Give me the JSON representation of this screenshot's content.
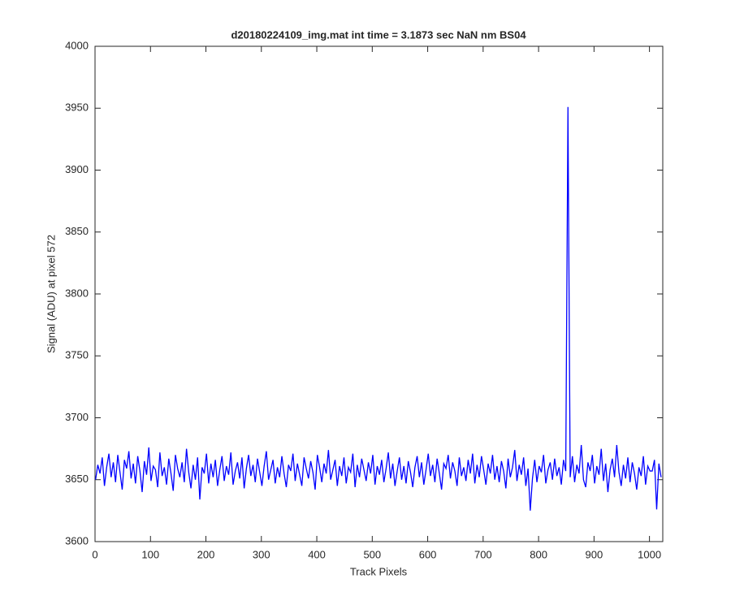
{
  "chart_data": {
    "type": "line",
    "title": "d20180224109_img.mat int time = 3.1873 sec  NaN nm BS04",
    "x_label": "Track Pixels",
    "y_label": "Signal (ADU) at pixel 572",
    "xlim": [
      0,
      1024
    ],
    "ylim": [
      3600,
      4000
    ],
    "xticks": [
      0,
      100,
      200,
      300,
      400,
      500,
      600,
      700,
      800,
      900,
      1000
    ],
    "yticks": [
      3600,
      3650,
      3700,
      3750,
      3800,
      3850,
      3900,
      3950,
      4000
    ],
    "grid": false,
    "series": [
      {
        "color": "#0000ff",
        "x": [
          1,
          5,
          9,
          13,
          17,
          21,
          25,
          29,
          33,
          37,
          41,
          45,
          49,
          53,
          57,
          61,
          65,
          69,
          73,
          77,
          81,
          85,
          89,
          93,
          97,
          101,
          105,
          109,
          113,
          117,
          121,
          125,
          129,
          133,
          137,
          141,
          145,
          149,
          153,
          157,
          161,
          165,
          169,
          173,
          177,
          181,
          185,
          189,
          193,
          197,
          201,
          205,
          209,
          213,
          217,
          221,
          225,
          229,
          233,
          237,
          241,
          245,
          249,
          253,
          257,
          261,
          265,
          269,
          273,
          277,
          281,
          285,
          289,
          293,
          297,
          301,
          305,
          309,
          313,
          317,
          321,
          325,
          329,
          333,
          337,
          341,
          345,
          349,
          353,
          357,
          361,
          365,
          369,
          373,
          377,
          381,
          385,
          389,
          393,
          397,
          401,
          405,
          409,
          413,
          417,
          421,
          425,
          429,
          433,
          437,
          441,
          445,
          449,
          453,
          457,
          461,
          465,
          469,
          473,
          477,
          481,
          485,
          489,
          493,
          497,
          501,
          505,
          509,
          513,
          517,
          521,
          525,
          529,
          533,
          537,
          541,
          545,
          549,
          553,
          557,
          561,
          565,
          569,
          573,
          577,
          581,
          585,
          589,
          593,
          597,
          601,
          605,
          609,
          613,
          617,
          621,
          625,
          629,
          633,
          637,
          641,
          645,
          649,
          653,
          657,
          661,
          665,
          669,
          673,
          677,
          681,
          685,
          689,
          693,
          697,
          701,
          705,
          709,
          713,
          717,
          721,
          725,
          729,
          733,
          737,
          741,
          745,
          749,
          753,
          757,
          761,
          765,
          769,
          773,
          777,
          781,
          785,
          789,
          793,
          797,
          801,
          805,
          809,
          813,
          817,
          821,
          825,
          829,
          833,
          837,
          841,
          845,
          849,
          853,
          857,
          861,
          865,
          869,
          873,
          877,
          881,
          885,
          889,
          893,
          897,
          901,
          905,
          909,
          913,
          917,
          921,
          925,
          929,
          933,
          937,
          941,
          945,
          949,
          953,
          957,
          961,
          965,
          969,
          973,
          977,
          981,
          985,
          989,
          993,
          997,
          1001,
          1005,
          1009,
          1013,
          1017,
          1021
        ],
        "values": [
          3650,
          3662,
          3655,
          3668,
          3645,
          3660,
          3671,
          3652,
          3664,
          3648,
          3670,
          3656,
          3642,
          3666,
          3659,
          3673,
          3651,
          3663,
          3647,
          3669,
          3657,
          3640,
          3665,
          3654,
          3676,
          3649,
          3661,
          3658,
          3644,
          3672,
          3653,
          3660,
          3646,
          3667,
          3655,
          3641,
          3670,
          3659,
          3652,
          3664,
          3648,
          3675,
          3656,
          3643,
          3662,
          3650,
          3668,
          3634,
          3660,
          3655,
          3671,
          3647,
          3663,
          3652,
          3666,
          3645,
          3658,
          3669,
          3649,
          3661,
          3654,
          3672,
          3646,
          3657,
          3664,
          3651,
          3668,
          3643,
          3659,
          3670,
          3653,
          3662,
          3648,
          3667,
          3656,
          3645,
          3661,
          3673,
          3650,
          3658,
          3666,
          3647,
          3660,
          3652,
          3669,
          3655,
          3644,
          3662,
          3657,
          3671,
          3649,
          3663,
          3654,
          3645,
          3668,
          3659,
          3651,
          3665,
          3656,
          3642,
          3670,
          3660,
          3648,
          3663,
          3655,
          3674,
          3650,
          3658,
          3666,
          3645,
          3661,
          3653,
          3668,
          3647,
          3660,
          3656,
          3671,
          3644,
          3662,
          3652,
          3667,
          3658,
          3649,
          3664,
          3655,
          3670,
          3646,
          3661,
          3654,
          3666,
          3648,
          3659,
          3672,
          3651,
          3663,
          3645,
          3657,
          3668,
          3650,
          3661,
          3647,
          3665,
          3656,
          3644,
          3660,
          3669,
          3652,
          3664,
          3646,
          3658,
          3671,
          3653,
          3662,
          3648,
          3667,
          3655,
          3642,
          3663,
          3659,
          3670,
          3651,
          3664,
          3657,
          3645,
          3668,
          3653,
          3660,
          3649,
          3666,
          3655,
          3671,
          3647,
          3662,
          3652,
          3669,
          3658,
          3646,
          3663,
          3655,
          3670,
          3650,
          3661,
          3648,
          3665,
          3657,
          3643,
          3667,
          3652,
          3660,
          3674,
          3649,
          3662,
          3654,
          3668,
          3645,
          3659,
          3625,
          3651,
          3666,
          3648,
          3661,
          3656,
          3670,
          3647,
          3658,
          3664,
          3650,
          3667,
          3653,
          3660,
          3646,
          3666,
          3657,
          3951,
          3652,
          3669,
          3648,
          3662,
          3655,
          3678,
          3650,
          3644,
          3664,
          3657,
          3670,
          3647,
          3661,
          3654,
          3675,
          3649,
          3663,
          3640,
          3658,
          3667,
          3652,
          3678,
          3656,
          3645,
          3662,
          3651,
          3668,
          3648,
          3664,
          3655,
          3642,
          3660,
          3653,
          3669,
          3646,
          3661,
          3657,
          3657,
          3666,
          3626,
          3663,
          3652
        ]
      }
    ]
  }
}
